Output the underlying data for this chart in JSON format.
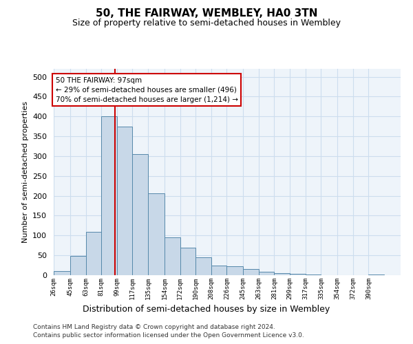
{
  "title1": "50, THE FAIRWAY, WEMBLEY, HA0 3TN",
  "title2": "Size of property relative to semi-detached houses in Wembley",
  "xlabel": "Distribution of semi-detached houses by size in Wembley",
  "ylabel": "Number of semi-detached properties",
  "footer1": "Contains HM Land Registry data © Crown copyright and database right 2024.",
  "footer2": "Contains public sector information licensed under the Open Government Licence v3.0.",
  "property_label": "50 THE FAIRWAY: 97sqm",
  "smaller_pct": "29% of semi-detached houses are smaller (496)",
  "larger_pct": "70% of semi-detached houses are larger (1,214)",
  "property_sqm": 97,
  "bin_labels": [
    "26sqm",
    "45sqm",
    "63sqm",
    "81sqm",
    "99sqm",
    "117sqm",
    "135sqm",
    "154sqm",
    "172sqm",
    "190sqm",
    "208sqm",
    "226sqm",
    "245sqm",
    "263sqm",
    "281sqm",
    "299sqm",
    "317sqm",
    "335sqm",
    "354sqm",
    "372sqm",
    "390sqm"
  ],
  "bin_edges": [
    26,
    45,
    63,
    81,
    99,
    117,
    135,
    154,
    172,
    190,
    208,
    226,
    245,
    263,
    281,
    299,
    317,
    335,
    354,
    372,
    390,
    408
  ],
  "bar_heights": [
    10,
    48,
    110,
    400,
    375,
    305,
    207,
    95,
    70,
    45,
    25,
    23,
    16,
    9,
    5,
    3,
    1,
    0,
    0,
    0,
    2
  ],
  "bar_color": "#c8d8e8",
  "bar_edge_color": "#5588aa",
  "highlight_line_color": "#cc0000",
  "annotation_box_edge": "#cc0000",
  "ylim": [
    0,
    520
  ],
  "yticks": [
    0,
    50,
    100,
    150,
    200,
    250,
    300,
    350,
    400,
    450,
    500
  ],
  "grid_color": "#ccddee",
  "bg_color": "#eef4fa"
}
